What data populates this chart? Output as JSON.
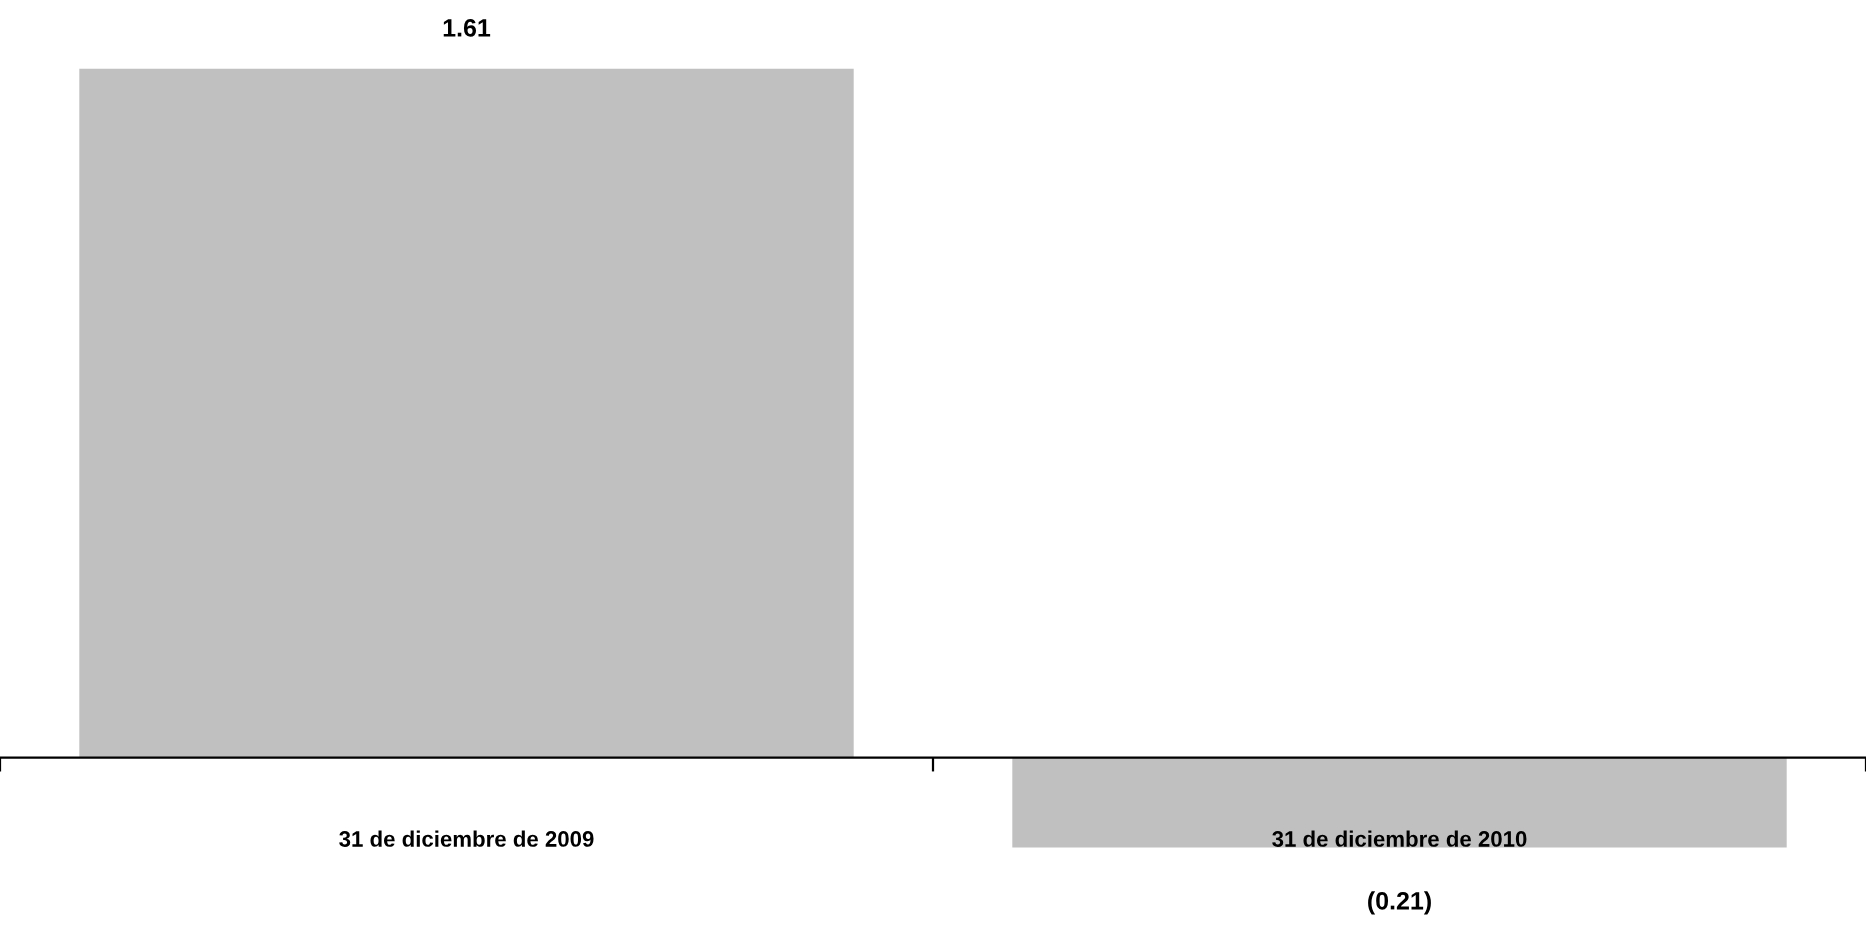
{
  "chart_data": {
    "type": "bar",
    "categories": [
      "31 de diciembre de 2009",
      "31 de diciembre de 2010"
    ],
    "values": [
      1.61,
      -0.21
    ],
    "value_labels": [
      "1.61",
      "(0.21)"
    ],
    "color": "#c0c0c0",
    "grid": false,
    "legend": false
  }
}
